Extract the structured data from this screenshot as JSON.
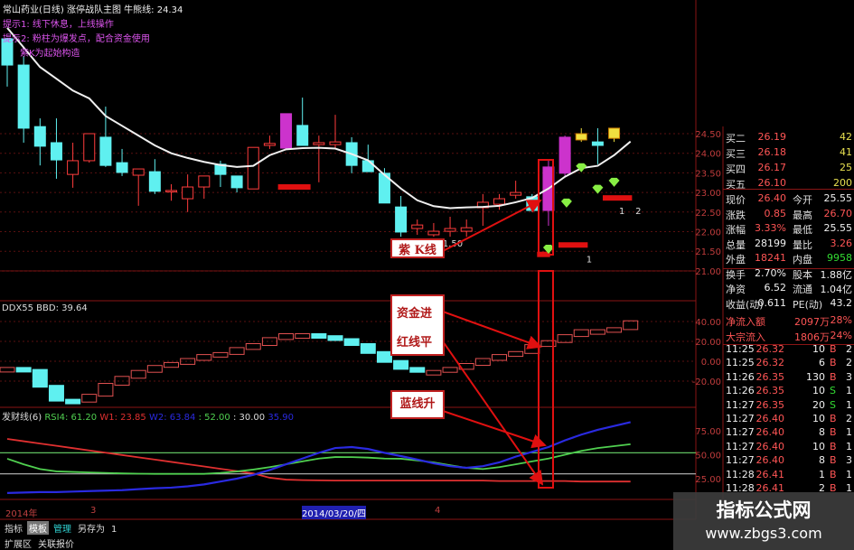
{
  "header": {
    "title": "常山药业(日线) 涨停战队主图 牛熊线: 24.34",
    "hint1": "提示1: 线下休息，上线操作",
    "hint2": "提示2: 粉柱为爆发点，配合资金使用",
    "hint3": "紫K为起始构造"
  },
  "colors": {
    "up": "#ff3c3c",
    "down": "#5ff0f0",
    "burst": "#cc33cc",
    "ma": "#f0f0f0",
    "signal": "#e01010",
    "diamond": "#88ee44",
    "yellow": "#f0e040",
    "grid": "#5a1010"
  },
  "chart_data": [
    {
      "type": "candlestick",
      "price_axis": {
        "ticks": [
          "24.50",
          "24.00",
          "23.50",
          "23.00",
          "22.50",
          "22.00",
          "21.50",
          "21.00"
        ]
      },
      "candles": [
        [
          26.92,
          26.25,
          26.92,
          25.7
        ],
        [
          26.25,
          24.64,
          26.48,
          24.27
        ],
        [
          24.68,
          24.18,
          24.89,
          23.69
        ],
        [
          24.27,
          23.83,
          24.89,
          23.35
        ],
        [
          23.46,
          23.81,
          24.27,
          23.12
        ],
        [
          23.81,
          24.5,
          24.5,
          23.76
        ],
        [
          24.41,
          23.69,
          25.19,
          23.65
        ],
        [
          23.76,
          23.51,
          24.11,
          23.42
        ],
        [
          23.44,
          23.6,
          23.6,
          22.66
        ],
        [
          23.53,
          23.03,
          23.85,
          22.96
        ],
        [
          23.05,
          23.03,
          23.21,
          22.79
        ],
        [
          22.84,
          23.14,
          23.46,
          22.5
        ],
        [
          23.14,
          23.42,
          23.42,
          22.84
        ],
        [
          23.72,
          23.46,
          23.81,
          23.14
        ],
        [
          23.42,
          23.12,
          23.42,
          23.0
        ],
        [
          23.09,
          24.15,
          24.15,
          23.09
        ],
        [
          24.2,
          24.25,
          24.45,
          24.11
        ],
        [
          24.13,
          25.01,
          25.01,
          24.13
        ],
        [
          24.71,
          24.2,
          25.42,
          24.2
        ],
        [
          24.22,
          24.27,
          24.45,
          23.26
        ],
        [
          24.22,
          24.29,
          24.98,
          24.11
        ],
        [
          24.27,
          23.69,
          24.41,
          23.49
        ],
        [
          23.81,
          23.53,
          24.22,
          23.53
        ],
        [
          23.49,
          22.73,
          23.62,
          22.73
        ],
        [
          22.63,
          21.99,
          22.91,
          21.87
        ],
        [
          22.08,
          22.17,
          22.31,
          21.92
        ],
        [
          21.92,
          22.01,
          22.22,
          21.87
        ],
        [
          22.01,
          22.08,
          22.38,
          21.87
        ],
        [
          22.01,
          22.1,
          22.31,
          21.87
        ],
        [
          22.61,
          22.75,
          22.96,
          22.15
        ],
        [
          22.7,
          22.84,
          22.96,
          22.56
        ],
        [
          22.93,
          23.0,
          23.3,
          22.84
        ],
        [
          22.89,
          22.54,
          22.96,
          22.5
        ],
        [
          22.54,
          23.65,
          23.81,
          22.15
        ],
        [
          23.49,
          24.41,
          24.45,
          23.42
        ],
        [
          24.34,
          24.5,
          24.64,
          24.29
        ],
        [
          24.29,
          24.2,
          24.64,
          23.72
        ],
        [
          24.38,
          24.64,
          24.64,
          24.29
        ]
      ],
      "candle_style": [
        "down",
        "down",
        "down",
        "down",
        "up",
        "up",
        "down",
        "down",
        "up",
        "down",
        "up",
        "up",
        "up",
        "down",
        "down",
        "up",
        "up",
        "burst",
        "down",
        "up",
        "up",
        "down",
        "down",
        "down",
        "down",
        "up",
        "up",
        "up",
        "up",
        "up",
        "up",
        "up",
        "down",
        "burst",
        "burst",
        "yellow",
        "down",
        "yellow"
      ],
      "ma_line": [
        27.2,
        26.7,
        26.2,
        25.9,
        25.6,
        25.4,
        24.95,
        24.7,
        24.45,
        24.2,
        24.0,
        23.88,
        23.78,
        23.7,
        23.65,
        23.68,
        23.95,
        24.1,
        24.13,
        24.14,
        24.12,
        23.98,
        23.82,
        23.45,
        23.1,
        22.8,
        22.65,
        22.6,
        22.62,
        22.63,
        22.66,
        22.75,
        22.86,
        23.1,
        23.4,
        23.62,
        23.68,
        23.95,
        24.3
      ],
      "signal_bars": [
        {
          "at": 17.5,
          "price": 23.14,
          "width": 2
        },
        {
          "at": 34.5,
          "price": 21.66,
          "width": 1.8
        },
        {
          "at": 37.2,
          "price": 22.86,
          "width": 1.8
        },
        {
          "at": 32.7,
          "price": 21.42,
          "width": 0.8
        }
      ],
      "diamonds": [
        {
          "at": 33,
          "price": 21.55
        },
        {
          "at": 34.1,
          "price": 22.73
        },
        {
          "at": 35,
          "price": 23.63
        },
        {
          "at": 36,
          "price": 23.08
        },
        {
          "at": 37,
          "price": 23.26
        }
      ],
      "marks": [
        {
          "at": 35.3,
          "price": 21.22,
          "text": "1"
        },
        {
          "at": 37.3,
          "price": 22.45,
          "text": "1"
        },
        {
          "at": 38.3,
          "price": 22.45,
          "text": "2"
        },
        {
          "at": 26.2,
          "price": 21.62,
          "text": "21.50"
        }
      ]
    },
    {
      "type": "step-line",
      "title": "DDX55 BBD: 39.64",
      "axis_ticks": [
        "40.00",
        "20.00",
        "0.00",
        "-20.00"
      ],
      "values": [
        -9,
        -11,
        -27,
        -41,
        -42,
        -36,
        -25,
        -18,
        -12,
        -7,
        -4,
        0,
        4,
        6,
        11,
        15,
        21,
        25,
        25,
        23,
        20,
        15,
        7,
        -2,
        -9,
        -12,
        -12,
        -9,
        -5,
        0,
        4,
        7,
        14,
        18,
        24,
        29,
        29,
        31,
        38
      ]
    },
    {
      "type": "line",
      "title": "发财线(6)",
      "legend": [
        "RSI4: 61.20",
        "W1: 23.85",
        "W2: 63.84",
        ": 52.00",
        ": 30.00",
        "35.90"
      ],
      "axis_ticks": [
        "75.00",
        "50.00",
        "25.00"
      ],
      "reference_lines": [
        52,
        30
      ],
      "series": [
        {
          "color": "#e03030",
          "values": [
            66.5,
            64.1,
            61.7,
            59.3,
            56.9,
            54.5,
            52.1,
            49.7,
            47.3,
            44.9,
            42.5,
            40.1,
            37.7,
            35.3,
            32.9,
            30.5,
            26,
            24,
            23.5,
            23.2,
            23,
            23,
            23,
            23,
            23,
            23,
            23,
            23,
            23,
            23,
            22.5,
            22.5,
            22.5,
            22.5,
            22.5,
            22,
            22,
            22,
            22
          ]
        },
        {
          "color": "#50d050",
          "values": [
            45.8,
            40,
            35,
            32.6,
            32,
            31.5,
            31,
            30.5,
            30.2,
            30,
            30,
            30,
            30,
            31,
            32.5,
            34.5,
            37,
            40,
            43,
            46,
            47.6,
            47.5,
            47,
            46,
            45.8,
            44,
            42,
            39,
            36.3,
            35,
            37,
            40,
            43,
            46,
            50,
            54,
            57,
            59,
            61
          ]
        },
        {
          "color": "#2a2ae0",
          "values": [
            10,
            10.5,
            11,
            11,
            11.5,
            12,
            12.5,
            13,
            14,
            15,
            15.6,
            17,
            19,
            22,
            25,
            29,
            34,
            40,
            46,
            52,
            57,
            58,
            56,
            52,
            48.6,
            45,
            41,
            38,
            36.3,
            38,
            42,
            48,
            53,
            58,
            65,
            71,
            76,
            80,
            84
          ]
        }
      ]
    }
  ],
  "annotations": [
    "紫 K线",
    "资金进",
    "红线平",
    "蓝线升"
  ],
  "date_axis": {
    "year": "2014年",
    "m3": "3",
    "cursor": "2014/03/20/四",
    "m4": "4"
  },
  "tabs": [
    "指标",
    "模板",
    "管理",
    "另存为",
    "1"
  ],
  "tabs2": [
    "扩展区",
    "关联报价"
  ],
  "quote": {
    "bids": [
      {
        "label": "买二",
        "price": "26.19",
        "vol": "42"
      },
      {
        "label": "买三",
        "price": "26.18",
        "vol": "41"
      },
      {
        "label": "买四",
        "price": "26.17",
        "vol": "25"
      },
      {
        "label": "买五",
        "price": "26.10",
        "vol": "200"
      }
    ],
    "stats": [
      {
        "l1": "现价",
        "v1": "26.40",
        "l2": "今开",
        "v2": "25.55",
        "c1": "red",
        "c2": "wht"
      },
      {
        "l1": "涨跌",
        "v1": "0.85",
        "l2": "最高",
        "v2": "26.70",
        "c1": "red",
        "c2": "red"
      },
      {
        "l1": "涨幅",
        "v1": "3.33%",
        "l2": "最低",
        "v2": "25.55",
        "c1": "red",
        "c2": "wht"
      },
      {
        "l1": "总量",
        "v1": "28199",
        "l2": "量比",
        "v2": "3.26",
        "c1": "wht",
        "c2": "red"
      },
      {
        "l1": "外盘",
        "v1": "18241",
        "l2": "内盘",
        "v2": "9958",
        "c1": "red",
        "c2": "grn"
      },
      {
        "l1": "换手",
        "v1": "2.70%",
        "l2": "股本",
        "v2": "1.88亿",
        "c1": "wht",
        "c2": "wht"
      },
      {
        "l1": "净资",
        "v1": "6.52",
        "l2": "流通",
        "v2": "1.04亿",
        "c1": "wht",
        "c2": "wht"
      },
      {
        "l1": "收益(动)",
        "v1": "0.611",
        "l2": "PE(动)",
        "v2": "43.2",
        "c1": "wht",
        "c2": "wht"
      }
    ],
    "flows": [
      {
        "label": "净流入额",
        "amount": "2097万",
        "pct": "28%"
      },
      {
        "label": "大宗流入",
        "amount": "1806万",
        "pct": "24%"
      }
    ],
    "trades": [
      {
        "time": "11:25",
        "price": "26.32",
        "vol": "10",
        "side": "B",
        "n": "2"
      },
      {
        "time": "11:25",
        "price": "26.32",
        "vol": "6",
        "side": "B",
        "n": "2"
      },
      {
        "time": "11:26",
        "price": "26.35",
        "vol": "130",
        "side": "B",
        "n": "3"
      },
      {
        "time": "11:26",
        "price": "26.35",
        "vol": "10",
        "side": "S",
        "n": "1"
      },
      {
        "time": "11:27",
        "price": "26.35",
        "vol": "20",
        "side": "S",
        "n": "1"
      },
      {
        "time": "11:27",
        "price": "26.40",
        "vol": "10",
        "side": "B",
        "n": "2"
      },
      {
        "time": "11:27",
        "price": "26.40",
        "vol": "8",
        "side": "B",
        "n": "1"
      },
      {
        "time": "11:27",
        "price": "26.40",
        "vol": "10",
        "side": "B",
        "n": "1"
      },
      {
        "time": "11:27",
        "price": "26.40",
        "vol": "8",
        "side": "B",
        "n": "3"
      },
      {
        "time": "11:28",
        "price": "26.41",
        "vol": "1",
        "side": "B",
        "n": "1"
      },
      {
        "time": "11:28",
        "price": "26.41",
        "vol": "2",
        "side": "B",
        "n": "1"
      }
    ]
  },
  "watermark": {
    "name": "指标公式网",
    "url": "www.zbgs3.com"
  }
}
